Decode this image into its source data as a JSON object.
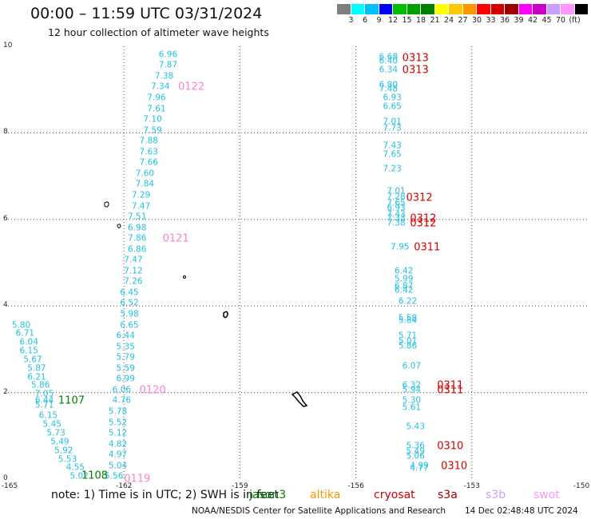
{
  "header": {
    "title": "00:00 – 11:59 UTC 03/31/2024",
    "subtitle": "12 hour collection of altimeter wave heights"
  },
  "legend": {
    "colors": [
      "#808080",
      "#00ffff",
      "#00bfff",
      "#0000ff",
      "#00bf00",
      "#00a000",
      "#008000",
      "#ffff00",
      "#ffc800",
      "#ff9600",
      "#ff0000",
      "#d20000",
      "#a00000",
      "#ff00ff",
      "#c800c8",
      "#c8a0ff",
      "#ff96ff",
      "#000000"
    ],
    "tick_labels": [
      "3",
      "6",
      "9",
      "12",
      "15",
      "18",
      "21",
      "24",
      "27",
      "30",
      "33",
      "36",
      "39",
      "42",
      "45",
      "70",
      "(ft)"
    ]
  },
  "axes": {
    "y_ticks": [
      "10",
      "8",
      "6",
      "4",
      "2",
      "0"
    ],
    "x_ticks": [
      "-165",
      "-162",
      "-159",
      "-156",
      "-153",
      "-150"
    ]
  },
  "map": {
    "swh_color": "#22c0e0",
    "track_a": [
      {
        "t": "6.96",
        "lon": -161.1,
        "lat": 9.8
      },
      {
        "t": "7.87",
        "lon": -161.1,
        "lat": 9.55
      },
      {
        "t": "7.38",
        "lon": -161.2,
        "lat": 9.3
      },
      {
        "t": "7.34",
        "lon": -161.3,
        "lat": 9.05
      },
      {
        "t": "7.96",
        "lon": -161.4,
        "lat": 8.8
      },
      {
        "t": "7.61",
        "lon": -161.4,
        "lat": 8.55
      },
      {
        "t": "7.10",
        "lon": -161.5,
        "lat": 8.3
      },
      {
        "t": "7.59",
        "lon": -161.5,
        "lat": 8.05
      },
      {
        "t": "7.88",
        "lon": -161.6,
        "lat": 7.8
      },
      {
        "t": "7.63",
        "lon": -161.6,
        "lat": 7.55
      },
      {
        "t": "7.66",
        "lon": -161.6,
        "lat": 7.3
      },
      {
        "t": "7.60",
        "lon": -161.7,
        "lat": 7.05
      },
      {
        "t": "7.84",
        "lon": -161.7,
        "lat": 6.8
      },
      {
        "t": "7.29",
        "lon": -161.8,
        "lat": 6.55
      },
      {
        "t": "7.47",
        "lon": -161.8,
        "lat": 6.3
      },
      {
        "t": "7.51",
        "lon": -161.9,
        "lat": 6.05
      },
      {
        "t": "6.98",
        "lon": -161.9,
        "lat": 5.8
      },
      {
        "t": "7.86",
        "lon": -161.9,
        "lat": 5.55
      },
      {
        "t": "6.86",
        "lon": -161.9,
        "lat": 5.3
      },
      {
        "t": "7.47",
        "lon": -162.0,
        "lat": 5.05
      },
      {
        "t": "7.12",
        "lon": -162.0,
        "lat": 4.8
      },
      {
        "t": "7.26",
        "lon": -162.0,
        "lat": 4.55
      },
      {
        "t": "6.45",
        "lon": -162.1,
        "lat": 4.3
      },
      {
        "t": "6.52",
        "lon": -162.1,
        "lat": 4.05
      },
      {
        "t": "5.98",
        "lon": -162.1,
        "lat": 3.8
      },
      {
        "t": "6.65",
        "lon": -162.1,
        "lat": 3.55
      },
      {
        "t": "6.44",
        "lon": -162.2,
        "lat": 3.3
      },
      {
        "t": "5.35",
        "lon": -162.2,
        "lat": 3.05
      },
      {
        "t": "5.79",
        "lon": -162.2,
        "lat": 2.8
      },
      {
        "t": "5.59",
        "lon": -162.2,
        "lat": 2.55
      },
      {
        "t": "6.99",
        "lon": -162.2,
        "lat": 2.3
      },
      {
        "t": "6.06",
        "lon": -162.3,
        "lat": 2.05
      },
      {
        "t": "4.76",
        "lon": -162.3,
        "lat": 1.8
      },
      {
        "t": "5.78",
        "lon": -162.4,
        "lat": 1.55
      },
      {
        "t": "5.52",
        "lon": -162.4,
        "lat": 1.3
      },
      {
        "t": "5.12",
        "lon": -162.4,
        "lat": 1.05
      },
      {
        "t": "4.82",
        "lon": -162.4,
        "lat": 0.8
      },
      {
        "t": "4.97",
        "lon": -162.4,
        "lat": 0.55
      },
      {
        "t": "5.04",
        "lon": -162.4,
        "lat": 0.3
      },
      {
        "t": "5.56",
        "lon": -162.5,
        "lat": 0.05
      }
    ],
    "track_b": [
      {
        "t": "5.80",
        "lon": -164.9,
        "lat": 3.55
      },
      {
        "t": "6.71",
        "lon": -164.8,
        "lat": 3.35
      },
      {
        "t": "6.04",
        "lon": -164.7,
        "lat": 3.15
      },
      {
        "t": "6.15",
        "lon": -164.7,
        "lat": 2.95
      },
      {
        "t": "5.67",
        "lon": -164.6,
        "lat": 2.75
      },
      {
        "t": "5.87",
        "lon": -164.5,
        "lat": 2.55
      },
      {
        "t": "6.21",
        "lon": -164.5,
        "lat": 2.35
      },
      {
        "t": "5.86",
        "lon": -164.4,
        "lat": 2.15
      },
      {
        "t": "7.05",
        "lon": -164.3,
        "lat": 1.95
      },
      {
        "t": "6.44",
        "lon": -164.3,
        "lat": 1.8
      },
      {
        "t": "5.71",
        "lon": -164.3,
        "lat": 1.7
      },
      {
        "t": "6.15",
        "lon": -164.2,
        "lat": 1.45
      },
      {
        "t": "5.45",
        "lon": -164.1,
        "lat": 1.25
      },
      {
        "t": "5.73",
        "lon": -164.0,
        "lat": 1.05
      },
      {
        "t": "5.49",
        "lon": -163.9,
        "lat": 0.85
      },
      {
        "t": "5.92",
        "lon": -163.8,
        "lat": 0.65
      },
      {
        "t": "5.53",
        "lon": -163.7,
        "lat": 0.45
      },
      {
        "t": "4.55",
        "lon": -163.5,
        "lat": 0.25
      },
      {
        "t": "5.02",
        "lon": -163.4,
        "lat": 0.05
      }
    ],
    "track_c": [
      {
        "t": "6.68",
        "lon": -155.4,
        "lat": 9.75
      },
      {
        "t": "6.40",
        "lon": -155.4,
        "lat": 9.65
      },
      {
        "t": "6.34",
        "lon": -155.4,
        "lat": 9.45
      },
      {
        "t": "6.80",
        "lon": -155.4,
        "lat": 9.1
      },
      {
        "t": "7.48",
        "lon": -155.4,
        "lat": 9.0
      },
      {
        "t": "6.93",
        "lon": -155.3,
        "lat": 8.8
      },
      {
        "t": "6.65",
        "lon": -155.3,
        "lat": 8.6
      },
      {
        "t": "7.01",
        "lon": -155.3,
        "lat": 8.25
      },
      {
        "t": "7.73",
        "lon": -155.3,
        "lat": 8.1
      },
      {
        "t": "7.43",
        "lon": -155.3,
        "lat": 7.7
      },
      {
        "t": "7.65",
        "lon": -155.3,
        "lat": 7.5
      },
      {
        "t": "7.23",
        "lon": -155.3,
        "lat": 7.15
      },
      {
        "t": "7.01",
        "lon": -155.2,
        "lat": 6.65
      },
      {
        "t": "7.28",
        "lon": -155.2,
        "lat": 6.52
      },
      {
        "t": "7.65",
        "lon": -155.2,
        "lat": 6.37
      },
      {
        "t": "6.93",
        "lon": -155.2,
        "lat": 6.25
      },
      {
        "t": "7.43",
        "lon": -155.2,
        "lat": 6.1
      },
      {
        "t": "7.33",
        "lon": -155.2,
        "lat": 6.02
      },
      {
        "t": "7.38",
        "lon": -155.2,
        "lat": 5.9
      },
      {
        "t": "7.95",
        "lon": -155.1,
        "lat": 5.35
      },
      {
        "t": "6.42",
        "lon": -155.0,
        "lat": 4.8
      },
      {
        "t": "5.99",
        "lon": -155.0,
        "lat": 4.62
      },
      {
        "t": "6.87",
        "lon": -155.0,
        "lat": 4.45
      },
      {
        "t": "6.42",
        "lon": -155.0,
        "lat": 4.35
      },
      {
        "t": "6.22",
        "lon": -154.9,
        "lat": 4.1
      },
      {
        "t": "5.58",
        "lon": -154.9,
        "lat": 3.7
      },
      {
        "t": "5.84",
        "lon": -154.9,
        "lat": 3.65
      },
      {
        "t": "5.71",
        "lon": -154.9,
        "lat": 3.3
      },
      {
        "t": "5.01",
        "lon": -154.9,
        "lat": 3.18
      },
      {
        "t": "5.86",
        "lon": -154.9,
        "lat": 3.06
      },
      {
        "t": "6.07",
        "lon": -154.8,
        "lat": 2.6
      },
      {
        "t": "6.32",
        "lon": -154.8,
        "lat": 2.15
      },
      {
        "t": "5.94",
        "lon": -154.8,
        "lat": 2.05
      },
      {
        "t": "5.30",
        "lon": -154.8,
        "lat": 1.8
      },
      {
        "t": "5.61",
        "lon": -154.8,
        "lat": 1.65
      },
      {
        "t": "5.43",
        "lon": -154.7,
        "lat": 1.2
      },
      {
        "t": "5.36",
        "lon": -154.7,
        "lat": 0.75
      },
      {
        "t": "5.49",
        "lon": -154.7,
        "lat": 0.62
      },
      {
        "t": "5.06",
        "lon": -154.7,
        "lat": 0.52
      },
      {
        "t": "4.99",
        "lon": -154.6,
        "lat": 0.3
      },
      {
        "t": "4.77",
        "lon": -154.6,
        "lat": 0.24
      }
    ],
    "date_labels": [
      {
        "t": "0122",
        "color": "#ff80d0",
        "lon": -160.6,
        "lat": 9.05
      },
      {
        "t": "0121",
        "color": "#ff80d0",
        "lon": -161.0,
        "lat": 5.55
      },
      {
        "t": "0120",
        "color": "#ff80d0",
        "lon": -161.6,
        "lat": 2.05
      },
      {
        "t": "0119",
        "color": "#ff80d0",
        "lon": -162.0,
        "lat": 0.0
      },
      {
        "t": "1107",
        "color": "#008000",
        "lon": -163.7,
        "lat": 1.8
      },
      {
        "t": "1108",
        "color": "#008000",
        "lon": -163.1,
        "lat": 0.08
      },
      {
        "t": "0313",
        "color": "#d40000",
        "lon": -154.8,
        "lat": 9.72
      },
      {
        "t": "0313",
        "color": "#d40000",
        "lon": -154.8,
        "lat": 9.45
      },
      {
        "t": "0312",
        "color": "#d40000",
        "lon": -154.7,
        "lat": 6.5
      },
      {
        "t": "0312",
        "color": "#d40000",
        "lon": -154.6,
        "lat": 6.02
      },
      {
        "t": "0312",
        "color": "#d40000",
        "lon": -154.6,
        "lat": 5.9
      },
      {
        "t": "0311",
        "color": "#d40000",
        "lon": -154.5,
        "lat": 5.35
      },
      {
        "t": "0311",
        "color": "#d40000",
        "lon": -153.9,
        "lat": 2.15
      },
      {
        "t": "0311",
        "color": "#d40000",
        "lon": -153.9,
        "lat": 2.05
      },
      {
        "t": "0310",
        "color": "#d40000",
        "lon": -153.9,
        "lat": 0.75
      },
      {
        "t": "0310",
        "color": "#d40000",
        "lon": -153.8,
        "lat": 0.3
      }
    ]
  },
  "footer": {
    "note": "note:  1) Time is in UTC;  2) SWH is in feet",
    "missions": [
      {
        "t": "jason3",
        "color": "#008000"
      },
      {
        "t": "altika",
        "color": "#ff9600"
      },
      {
        "t": "cryosat",
        "color": "#d40000"
      },
      {
        "t": "s3a",
        "color": "#a00000"
      },
      {
        "t": "s3b",
        "color": "#c8a0ff"
      },
      {
        "t": "swot",
        "color": "#ff96ff"
      }
    ],
    "center": "NOAA/NESDIS Center for Satellite Applications and Research",
    "timestamp": "14 Dec 02:48:48 UTC 2024"
  }
}
